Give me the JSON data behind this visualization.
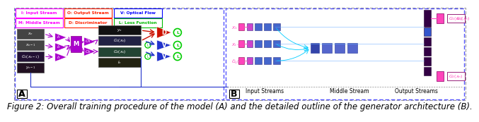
{
  "caption": "Figure 2: Overall training procedure of the model (A) and the detailed outline of the generator architecture (B).",
  "caption_fontsize": 8.5,
  "fig_width": 6.4,
  "fig_height": 1.53,
  "bg": "#ffffff",
  "panel_border": "#5555ff",
  "outer_border": "#888888",
  "purple": "#9900bb",
  "purple_fill": "#aa00cc",
  "magenta": "#ff00ff",
  "blue_tri": "#2244dd",
  "red_tri": "#dd2200",
  "green_circle": "#00cc00",
  "cyan_line": "#00aaff",
  "pink_line": "#ff44aa",
  "dark_img": "#111111",
  "legend_magenta": "#ff00ff",
  "legend_red": "#ff2200",
  "legend_blue": "#0000ff",
  "legend_green": "#00bb00"
}
